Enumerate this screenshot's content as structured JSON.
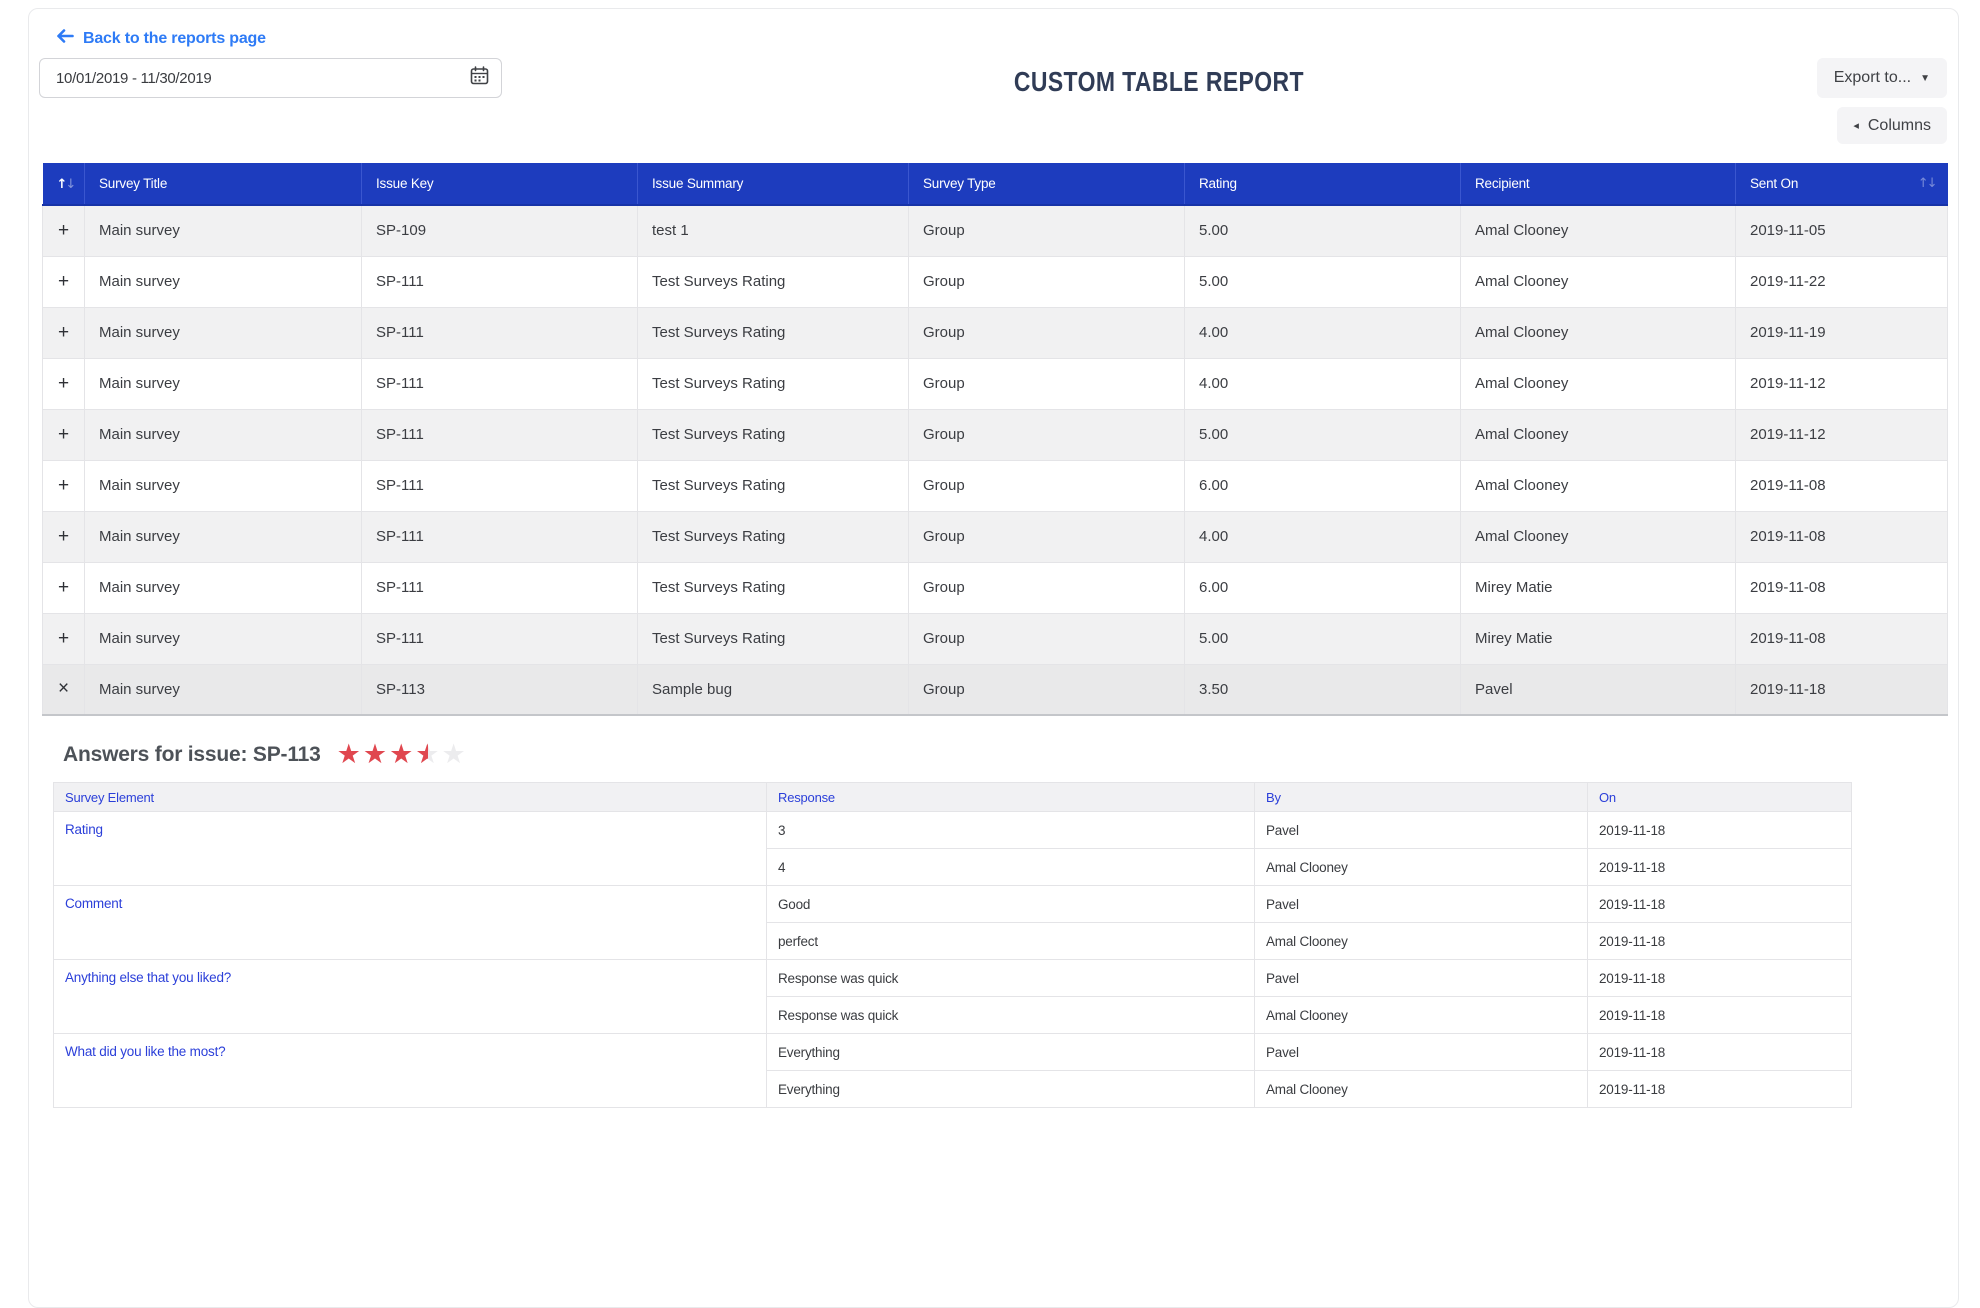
{
  "header": {
    "back_link": "Back to the reports page",
    "date_range": "10/01/2019 - 11/30/2019",
    "title": "CUSTOM TABLE REPORT",
    "export_button": "Export to...",
    "export_caret": "▼",
    "columns_button": "Columns",
    "columns_arrow": "◂"
  },
  "colors": {
    "header_blue": "#1d3cbe",
    "link_blue": "#2e7bf6",
    "star_red": "#e0474f",
    "subtable_blue": "#2b3fd9",
    "row_alt_gray": "#f1f1f2",
    "row_expanded_gray": "#e9e9ea"
  },
  "main_table": {
    "sort_up": "↑",
    "sort_down": "↓",
    "columns": [
      "Survey Title",
      "Issue Key",
      "Issue Summary",
      "Survey Type",
      "Rating",
      "Recipient",
      "Sent On"
    ],
    "expand_collapsed_icon": "+",
    "expand_expanded_icon": "×",
    "rows": [
      {
        "expanded": false,
        "survey_title": "Main survey",
        "issue_key": "SP-109",
        "issue_summary": "test 1",
        "survey_type": "Group",
        "rating": "5.00",
        "recipient": "Amal Clooney",
        "sent_on": "2019-11-05"
      },
      {
        "expanded": false,
        "survey_title": "Main survey",
        "issue_key": "SP-111",
        "issue_summary": "Test Surveys Rating",
        "survey_type": "Group",
        "rating": "5.00",
        "recipient": "Amal Clooney",
        "sent_on": "2019-11-22"
      },
      {
        "expanded": false,
        "survey_title": "Main survey",
        "issue_key": "SP-111",
        "issue_summary": "Test Surveys Rating",
        "survey_type": "Group",
        "rating": "4.00",
        "recipient": "Amal Clooney",
        "sent_on": "2019-11-19"
      },
      {
        "expanded": false,
        "survey_title": "Main survey",
        "issue_key": "SP-111",
        "issue_summary": "Test Surveys Rating",
        "survey_type": "Group",
        "rating": "4.00",
        "recipient": "Amal Clooney",
        "sent_on": "2019-11-12"
      },
      {
        "expanded": false,
        "survey_title": "Main survey",
        "issue_key": "SP-111",
        "issue_summary": "Test Surveys Rating",
        "survey_type": "Group",
        "rating": "5.00",
        "recipient": "Amal Clooney",
        "sent_on": "2019-11-12"
      },
      {
        "expanded": false,
        "survey_title": "Main survey",
        "issue_key": "SP-111",
        "issue_summary": "Test Surveys Rating",
        "survey_type": "Group",
        "rating": "6.00",
        "recipient": "Amal Clooney",
        "sent_on": "2019-11-08"
      },
      {
        "expanded": false,
        "survey_title": "Main survey",
        "issue_key": "SP-111",
        "issue_summary": "Test Surveys Rating",
        "survey_type": "Group",
        "rating": "4.00",
        "recipient": "Amal Clooney",
        "sent_on": "2019-11-08"
      },
      {
        "expanded": false,
        "survey_title": "Main survey",
        "issue_key": "SP-111",
        "issue_summary": "Test Surveys Rating",
        "survey_type": "Group",
        "rating": "6.00",
        "recipient": "Mirey Matie",
        "sent_on": "2019-11-08"
      },
      {
        "expanded": false,
        "survey_title": "Main survey",
        "issue_key": "SP-111",
        "issue_summary": "Test Surveys Rating",
        "survey_type": "Group",
        "rating": "5.00",
        "recipient": "Mirey Matie",
        "sent_on": "2019-11-08"
      },
      {
        "expanded": true,
        "survey_title": "Main survey",
        "issue_key": "SP-113",
        "issue_summary": "Sample bug",
        "survey_type": "Group",
        "rating": "3.50",
        "recipient": "Pavel",
        "sent_on": "2019-11-18"
      }
    ]
  },
  "answers": {
    "heading": "Answers for issue: SP-113",
    "rating_value": 3.5,
    "max_stars": 5,
    "columns": [
      "Survey Element",
      "Response",
      "By",
      "On"
    ],
    "groups": [
      {
        "element": "Rating",
        "responses": [
          {
            "response": "3",
            "by": "Pavel",
            "on": "2019-11-18"
          },
          {
            "response": "4",
            "by": "Amal Clooney",
            "on": "2019-11-18"
          }
        ]
      },
      {
        "element": "Comment",
        "responses": [
          {
            "response": "Good",
            "by": "Pavel",
            "on": "2019-11-18"
          },
          {
            "response": "perfect",
            "by": "Amal Clooney",
            "on": "2019-11-18"
          }
        ]
      },
      {
        "element": "Anything else that you liked?",
        "responses": [
          {
            "response": "Response was quick",
            "by": "Pavel",
            "on": "2019-11-18"
          },
          {
            "response": "Response was quick",
            "by": "Amal Clooney",
            "on": "2019-11-18"
          }
        ]
      },
      {
        "element": "What did you like the most?",
        "responses": [
          {
            "response": "Everything",
            "by": "Pavel",
            "on": "2019-11-18"
          },
          {
            "response": "Everything",
            "by": "Amal Clooney",
            "on": "2019-11-18"
          }
        ]
      }
    ]
  }
}
